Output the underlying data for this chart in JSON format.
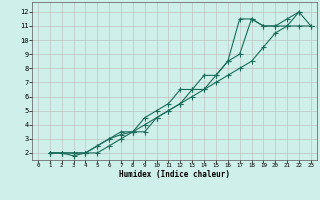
{
  "xlabel": "Humidex (Indice chaleur)",
  "bg_color": "#cff0ea",
  "grid_color": "#b8b8b8",
  "line_color": "#1a6b5a",
  "xlim": [
    -0.5,
    23.5
  ],
  "ylim": [
    1.5,
    12.7
  ],
  "xticks": [
    0,
    1,
    2,
    3,
    4,
    5,
    6,
    7,
    8,
    9,
    10,
    11,
    12,
    13,
    14,
    15,
    16,
    17,
    18,
    19,
    20,
    21,
    22,
    23
  ],
  "yticks": [
    2,
    3,
    4,
    5,
    6,
    7,
    8,
    9,
    10,
    11,
    12
  ],
  "line1_x": [
    1,
    2,
    3,
    4,
    5,
    6,
    7,
    8,
    9,
    10,
    11,
    12,
    13,
    14,
    15,
    16,
    17,
    18,
    19,
    20,
    21,
    22,
    23
  ],
  "line1_y": [
    2.0,
    2.0,
    2.0,
    2.0,
    2.5,
    3.0,
    3.3,
    3.5,
    4.0,
    4.5,
    5.0,
    5.5,
    6.0,
    6.5,
    7.0,
    7.5,
    8.0,
    8.5,
    9.5,
    10.5,
    11.0,
    11.0,
    11.0
  ],
  "line2_x": [
    1,
    2,
    3,
    4,
    5,
    6,
    7,
    8,
    9,
    10,
    11,
    12,
    13,
    14,
    15,
    16,
    17,
    18,
    19,
    20,
    21,
    22
  ],
  "line2_y": [
    2.0,
    2.0,
    1.8,
    2.0,
    2.0,
    2.5,
    3.0,
    3.5,
    3.5,
    4.5,
    5.0,
    5.5,
    6.5,
    6.5,
    7.5,
    8.5,
    9.0,
    11.5,
    11.0,
    11.0,
    11.0,
    12.0
  ],
  "line3_x": [
    1,
    2,
    3,
    4,
    5,
    6,
    7,
    8,
    9,
    10,
    11,
    12,
    13,
    14,
    15,
    16,
    17,
    18,
    19,
    20,
    21,
    22,
    23
  ],
  "line3_y": [
    2.0,
    2.0,
    2.0,
    2.0,
    2.5,
    3.0,
    3.5,
    3.5,
    4.5,
    5.0,
    5.5,
    6.5,
    6.5,
    7.5,
    7.5,
    8.5,
    11.5,
    11.5,
    11.0,
    11.0,
    11.5,
    12.0,
    11.0
  ]
}
